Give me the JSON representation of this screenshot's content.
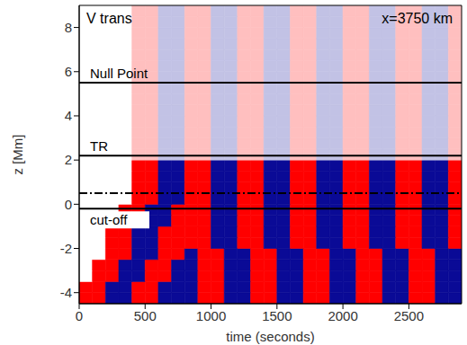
{
  "chart_data": {
    "type": "heatmap",
    "annotations": [
      "V trans",
      "x=3750 km"
    ],
    "x_label": "time (seconds)",
    "y_label": "z [Mm]",
    "xlim": [
      0,
      2900
    ],
    "ylim": [
      -4.5,
      9
    ],
    "xticks": [
      0,
      500,
      1000,
      1500,
      2000,
      2500
    ],
    "yticks": [
      -4,
      -2,
      0,
      2,
      4,
      6,
      8
    ],
    "clim": [
      -1,
      1
    ],
    "x_edges": [
      0,
      100,
      200,
      300,
      400,
      500,
      600,
      700,
      800,
      900,
      1000,
      1100,
      1200,
      1300,
      1400,
      1500,
      1600,
      1700,
      1800,
      1900,
      2000,
      2100,
      2200,
      2300,
      2400,
      2500,
      2600,
      2700,
      2800,
      2900
    ],
    "y_edges": [
      -4.5,
      -4,
      -3.5,
      -3,
      -2.5,
      -2,
      -1.5,
      -1,
      -0.5,
      0,
      0.5,
      1,
      1.5,
      2,
      2.5,
      3,
      3.5,
      4,
      4.5,
      5,
      5.5,
      6,
      6.5,
      7,
      7.5,
      8,
      8.5,
      9
    ],
    "cells": [
      [
        1,
        1,
        -1,
        -1,
        1,
        1,
        -1,
        -1,
        -1,
        1,
        1,
        -1,
        -1,
        1,
        1,
        -1,
        -1,
        1,
        1,
        -1,
        -1,
        1,
        1,
        -1,
        -1,
        1,
        1,
        -1,
        -1
      ],
      [
        1,
        1,
        -1,
        -1,
        1,
        1,
        -1,
        -1,
        -1,
        1,
        1,
        -1,
        -1,
        1,
        1,
        -1,
        -1,
        1,
        1,
        -1,
        -1,
        1,
        1,
        -1,
        -1,
        1,
        1,
        -1,
        -1
      ],
      [
        0,
        1,
        1,
        -1,
        -1,
        1,
        1,
        -1,
        -1,
        1,
        1,
        -1,
        -1,
        1,
        1,
        -1,
        -1,
        1,
        1,
        -1,
        -1,
        1,
        1,
        -1,
        -1,
        1,
        1,
        -1,
        -1
      ],
      [
        0,
        1,
        1,
        -1,
        -1,
        1,
        1,
        -1,
        -1,
        1,
        1,
        -1,
        -1,
        1,
        1,
        -1,
        -1,
        1,
        1,
        -1,
        -1,
        1,
        1,
        -1,
        -1,
        1,
        1,
        -1,
        -1
      ],
      [
        0,
        0,
        1,
        1,
        -1,
        -1,
        1,
        1,
        -1,
        1,
        1,
        -1,
        -1,
        1,
        1,
        -1,
        -1,
        1,
        1,
        -1,
        -1,
        1,
        1,
        -1,
        -1,
        1,
        1,
        -1,
        -1
      ],
      [
        0,
        0,
        1,
        1,
        -1,
        -1,
        1,
        1,
        1,
        1,
        -1,
        -1,
        1,
        1,
        -1,
        -1,
        1,
        1,
        -1,
        -1,
        1,
        1,
        -1,
        -1,
        1,
        1,
        -1,
        -1,
        1
      ],
      [
        0,
        0,
        1,
        1,
        -1,
        -1,
        1,
        1,
        1,
        1,
        -1,
        -1,
        1,
        1,
        -1,
        -1,
        1,
        1,
        -1,
        -1,
        1,
        1,
        -1,
        -1,
        1,
        1,
        -1,
        -1,
        1
      ],
      [
        0,
        0,
        0,
        1,
        1,
        -1,
        -1,
        1,
        1,
        1,
        -1,
        -1,
        1,
        1,
        -1,
        -1,
        1,
        1,
        -1,
        -1,
        1,
        1,
        -1,
        -1,
        1,
        1,
        -1,
        -1,
        1
      ],
      [
        0,
        0,
        0,
        1,
        1,
        -1,
        -1,
        1,
        1,
        1,
        -1,
        -1,
        1,
        1,
        -1,
        -1,
        1,
        1,
        -1,
        -1,
        1,
        1,
        -1,
        -1,
        1,
        1,
        -1,
        -1,
        1
      ],
      [
        0,
        0,
        0,
        0,
        1,
        1,
        -1,
        -1,
        1,
        1,
        -1,
        -1,
        1,
        1,
        -1,
        -1,
        1,
        1,
        -1,
        -1,
        1,
        1,
        -1,
        -1,
        1,
        1,
        -1,
        -1,
        1
      ],
      [
        0,
        0,
        0,
        0,
        1,
        1,
        -1,
        -1,
        1,
        1,
        -1,
        -1,
        1,
        1,
        -1,
        -1,
        1,
        1,
        -1,
        -1,
        1,
        1,
        -1,
        -1,
        1,
        1,
        -1,
        -1,
        1
      ],
      [
        0,
        0,
        0,
        0,
        1,
        1,
        -1,
        -1,
        1,
        1,
        -1,
        -1,
        1,
        1,
        -1,
        -1,
        1,
        1,
        -1,
        -1,
        1,
        1,
        -1,
        -1,
        1,
        1,
        -1,
        -1,
        1
      ],
      [
        0,
        0,
        0,
        0,
        1,
        1,
        -1,
        -1,
        1,
        1,
        -1,
        -1,
        1,
        1,
        -1,
        -1,
        1,
        1,
        -1,
        -1,
        1,
        1,
        -1,
        -1,
        1,
        1,
        -1,
        -1,
        1
      ],
      [
        0,
        0,
        0,
        0,
        0.25,
        0.25,
        -0.25,
        -0.25,
        0.25,
        0.25,
        -0.25,
        -0.25,
        0.25,
        0.25,
        -0.25,
        -0.25,
        0.25,
        0.25,
        -0.25,
        -0.25,
        0.25,
        0.25,
        -0.25,
        -0.25,
        0.25,
        0.25,
        -0.25,
        -0.25,
        0.25
      ],
      [
        0,
        0,
        0,
        0,
        0.25,
        0.25,
        -0.25,
        -0.25,
        0.25,
        0.25,
        -0.25,
        -0.25,
        0.25,
        0.25,
        -0.25,
        -0.25,
        0.25,
        0.25,
        -0.25,
        -0.25,
        0.25,
        0.25,
        -0.25,
        -0.25,
        0.25,
        0.25,
        -0.25,
        -0.25,
        0.25
      ],
      [
        0,
        0,
        0,
        0,
        0.25,
        0.25,
        -0.25,
        -0.25,
        0.25,
        0.25,
        -0.25,
        -0.25,
        0.25,
        0.25,
        -0.25,
        -0.25,
        0.25,
        0.25,
        -0.25,
        -0.25,
        0.25,
        0.25,
        -0.25,
        -0.25,
        0.25,
        0.25,
        -0.25,
        -0.25,
        0.25
      ],
      [
        0,
        0,
        0,
        0,
        0.25,
        0.25,
        -0.25,
        -0.25,
        0.25,
        0.25,
        -0.25,
        -0.25,
        0.25,
        0.25,
        -0.25,
        -0.25,
        0.25,
        0.25,
        -0.25,
        -0.25,
        0.25,
        0.25,
        -0.25,
        -0.25,
        0.25,
        0.25,
        -0.25,
        -0.25,
        0.25
      ],
      [
        0,
        0,
        0,
        0,
        0.25,
        0.25,
        -0.25,
        -0.25,
        0.25,
        0.25,
        -0.25,
        -0.25,
        0.25,
        0.25,
        -0.25,
        -0.25,
        0.25,
        0.25,
        -0.25,
        -0.25,
        0.25,
        0.25,
        -0.25,
        -0.25,
        0.25,
        0.25,
        -0.25,
        -0.25,
        0.25
      ],
      [
        0,
        0,
        0,
        0,
        0.25,
        0.25,
        -0.25,
        -0.25,
        0.25,
        0.25,
        -0.25,
        -0.25,
        0.25,
        0.25,
        -0.25,
        -0.25,
        0.25,
        0.25,
        -0.25,
        -0.25,
        0.25,
        0.25,
        -0.25,
        -0.25,
        0.25,
        0.25,
        -0.25,
        -0.25,
        0.25
      ],
      [
        0,
        0,
        0,
        0,
        0.25,
        0.25,
        -0.25,
        -0.25,
        0.25,
        0.25,
        -0.25,
        -0.25,
        0.25,
        0.25,
        -0.25,
        -0.25,
        0.25,
        0.25,
        -0.25,
        -0.25,
        0.25,
        0.25,
        -0.25,
        -0.25,
        0.25,
        0.25,
        -0.25,
        -0.25,
        0.25
      ],
      [
        0,
        0,
        0,
        0,
        0.25,
        0.25,
        -0.25,
        -0.25,
        0.25,
        0.25,
        -0.25,
        -0.25,
        0.25,
        0.25,
        -0.25,
        -0.25,
        0.25,
        0.25,
        -0.25,
        -0.25,
        0.25,
        0.25,
        -0.25,
        -0.25,
        0.25,
        0.25,
        -0.25,
        -0.25,
        0.25
      ],
      [
        0,
        0,
        0,
        0,
        0.25,
        0.25,
        -0.25,
        -0.25,
        0.25,
        0.25,
        -0.25,
        -0.25,
        0.25,
        0.25,
        -0.25,
        -0.25,
        0.25,
        0.25,
        -0.25,
        -0.25,
        0.25,
        0.25,
        -0.25,
        -0.25,
        0.25,
        0.25,
        -0.25,
        -0.25,
        0.25
      ],
      [
        0,
        0,
        0,
        0,
        0.25,
        0.25,
        -0.25,
        -0.25,
        0.25,
        0.25,
        -0.25,
        -0.25,
        0.25,
        0.25,
        -0.25,
        -0.25,
        0.25,
        0.25,
        -0.25,
        -0.25,
        0.25,
        0.25,
        -0.25,
        -0.25,
        0.25,
        0.25,
        -0.25,
        -0.25,
        0.25
      ],
      [
        0,
        0,
        0,
        0,
        0.25,
        0.25,
        -0.25,
        -0.25,
        0.25,
        0.25,
        -0.25,
        -0.25,
        0.25,
        0.25,
        -0.25,
        -0.25,
        0.25,
        0.25,
        -0.25,
        -0.25,
        0.25,
        0.25,
        -0.25,
        -0.25,
        0.25,
        0.25,
        -0.25,
        -0.25,
        0.25
      ],
      [
        0,
        0,
        0,
        0,
        0.25,
        0.25,
        -0.25,
        -0.25,
        0.25,
        0.25,
        -0.25,
        -0.25,
        0.25,
        0.25,
        -0.25,
        -0.25,
        0.25,
        0.25,
        -0.25,
        -0.25,
        0.25,
        0.25,
        -0.25,
        -0.25,
        0.25,
        0.25,
        -0.25,
        -0.25,
        0.25
      ],
      [
        0,
        0,
        0,
        0,
        0.25,
        0.25,
        -0.25,
        -0.25,
        0.25,
        0.25,
        -0.25,
        -0.25,
        0.25,
        0.25,
        -0.25,
        -0.25,
        0.25,
        0.25,
        -0.25,
        -0.25,
        0.25,
        0.25,
        -0.25,
        -0.25,
        0.25,
        0.25,
        -0.25,
        -0.25,
        0.25
      ],
      [
        0,
        0,
        0,
        0,
        0.25,
        0.25,
        -0.25,
        -0.25,
        0.25,
        0.25,
        -0.25,
        -0.25,
        0.25,
        0.25,
        -0.25,
        -0.25,
        0.25,
        0.25,
        -0.25,
        -0.25,
        0.25,
        0.25,
        -0.25,
        -0.25,
        0.25,
        0.25,
        -0.25,
        -0.25,
        0.25
      ]
    ],
    "lines": [
      {
        "value": 5.5,
        "label": "Null Point",
        "line_style": "solid"
      },
      {
        "value": 2.2,
        "label": "TR",
        "line_style": "solid"
      },
      {
        "value": 0.5,
        "line_style": "dashdot"
      },
      {
        "value": -0.2,
        "label": "cut-off",
        "line_style": "solid"
      }
    ]
  }
}
